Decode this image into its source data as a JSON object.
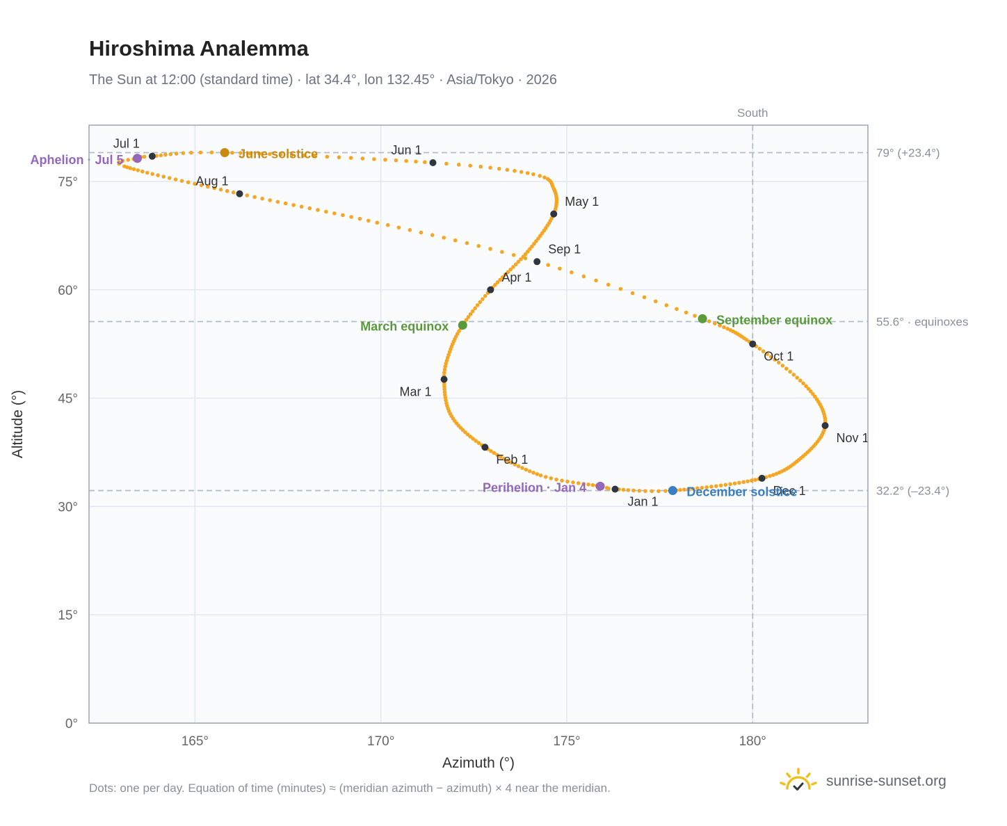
{
  "title": "Hiroshima Analemma",
  "subtitle": "The Sun at 12:00 (standard time) · lat 34.4°, lon 132.45° · Asia/Tokyo · 2026",
  "footnote": "Dots: one per day. Equation of time (minutes) ≈ (meridian azimuth − azimuth) × 4 near the meridian.",
  "brand": {
    "name": "sunrise-sunset.org",
    "icon": "sun-logo-icon",
    "color": "#f0c020"
  },
  "colors": {
    "curve": "#f5a623",
    "month_marker": "#2f3640",
    "solstice_june": "#c98a0d",
    "solstice_december": "#3a7fc1",
    "equinox": "#5a9a3a",
    "apsis": "#9467bd",
    "reference_line": "#b3bdc8",
    "grid": "#e3e8ee",
    "plot_background": "#f9fbfd",
    "plot_border": "#9aa5b4"
  },
  "chart_data": {
    "type": "scatter",
    "xlabel": "Azimuth (°)",
    "ylabel": "Altitude (°)",
    "xlim": [
      162.15,
      183.1
    ],
    "ylim": [
      0,
      82.8
    ],
    "xticks": [
      "165°",
      "170°",
      "175°",
      "180°"
    ],
    "xtick_values": [
      165,
      170,
      175,
      180
    ],
    "yticks": [
      "0°",
      "15°",
      "30°",
      "45°",
      "60°",
      "75°"
    ],
    "ytick_values": [
      0,
      15,
      30,
      45,
      60,
      75
    ],
    "grid": true,
    "meridian": {
      "label": "South",
      "azimuth": 180
    },
    "reference_lines": [
      {
        "altitude": 79.0,
        "label": "79° (+23.4°)"
      },
      {
        "altitude": 55.6,
        "label": "55.6° · equinoxes"
      },
      {
        "altitude": 32.2,
        "label": "32.2° (–23.4°)"
      }
    ],
    "curve_anchors": [
      {
        "day": 0,
        "az": 176.3,
        "alt": 32.4
      },
      {
        "day": 3,
        "az": 175.9,
        "alt": 32.8
      },
      {
        "day": 15,
        "az": 174.3,
        "alt": 34.3
      },
      {
        "day": 31,
        "az": 172.8,
        "alt": 38.2
      },
      {
        "day": 45,
        "az": 171.9,
        "alt": 42.5
      },
      {
        "day": 59,
        "az": 171.7,
        "alt": 47.6
      },
      {
        "day": 68,
        "az": 171.85,
        "alt": 51.4
      },
      {
        "day": 78,
        "az": 172.2,
        "alt": 55.1
      },
      {
        "day": 90,
        "az": 172.95,
        "alt": 60.0
      },
      {
        "day": 105,
        "az": 173.95,
        "alt": 65.3
      },
      {
        "day": 120,
        "az": 174.65,
        "alt": 70.5
      },
      {
        "day": 132,
        "az": 174.65,
        "alt": 74.0
      },
      {
        "day": 140,
        "az": 174.1,
        "alt": 76.0
      },
      {
        "day": 151,
        "az": 171.4,
        "alt": 77.6
      },
      {
        "day": 171,
        "az": 165.8,
        "alt": 79.0
      },
      {
        "day": 181,
        "az": 163.85,
        "alt": 78.5
      },
      {
        "day": 185,
        "az": 163.45,
        "alt": 78.2
      },
      {
        "day": 191,
        "az": 163.1,
        "alt": 77.1
      },
      {
        "day": 212,
        "az": 166.2,
        "alt": 73.3
      },
      {
        "day": 229,
        "az": 169.9,
        "alt": 69.3
      },
      {
        "day": 243,
        "az": 174.2,
        "alt": 63.9
      },
      {
        "day": 258,
        "az": 178.65,
        "alt": 56.0
      },
      {
        "day": 273,
        "az": 180.0,
        "alt": 52.5
      },
      {
        "day": 289,
        "az": 181.5,
        "alt": 46.3
      },
      {
        "day": 304,
        "az": 181.95,
        "alt": 41.2
      },
      {
        "day": 319,
        "az": 181.3,
        "alt": 36.7
      },
      {
        "day": 334,
        "az": 180.25,
        "alt": 33.9
      },
      {
        "day": 355,
        "az": 177.85,
        "alt": 32.2
      },
      {
        "day": 365,
        "az": 176.3,
        "alt": 32.4
      }
    ],
    "month_markers": [
      {
        "label": "Jan 1",
        "az": 176.3,
        "alt": 32.4,
        "anchor": "start",
        "dx": 18,
        "dy": 24
      },
      {
        "label": "Feb 1",
        "az": 172.8,
        "alt": 38.2,
        "anchor": "start",
        "dx": 16,
        "dy": 24
      },
      {
        "label": "Mar 1",
        "az": 171.7,
        "alt": 47.6,
        "anchor": "end",
        "dx": -18,
        "dy": 24
      },
      {
        "label": "Apr 1",
        "az": 172.95,
        "alt": 60.0,
        "anchor": "start",
        "dx": 16,
        "dy": -12
      },
      {
        "label": "May 1",
        "az": 174.65,
        "alt": 70.5,
        "anchor": "start",
        "dx": 16,
        "dy": -12
      },
      {
        "label": "Jun 1",
        "az": 171.4,
        "alt": 77.6,
        "anchor": "end",
        "dx": -16,
        "dy": -12
      },
      {
        "label": "Jul 1",
        "az": 163.85,
        "alt": 78.5,
        "anchor": "end",
        "dx": -18,
        "dy": -12
      },
      {
        "label": "Aug 1",
        "az": 166.2,
        "alt": 73.3,
        "anchor": "end",
        "dx": -16,
        "dy": -12
      },
      {
        "label": "Sep 1",
        "az": 174.2,
        "alt": 63.9,
        "anchor": "start",
        "dx": 16,
        "dy": -12
      },
      {
        "label": "Oct 1",
        "az": 180.0,
        "alt": 52.5,
        "anchor": "start",
        "dx": 16,
        "dy": 24
      },
      {
        "label": "Nov 1",
        "az": 181.95,
        "alt": 41.2,
        "anchor": "start",
        "dx": 16,
        "dy": 24
      },
      {
        "label": "Dec 1",
        "az": 180.25,
        "alt": 33.9,
        "anchor": "start",
        "dx": 16,
        "dy": 24
      }
    ],
    "events": [
      {
        "label": "June solstice",
        "az": 165.8,
        "alt": 79.0,
        "color": "#c98a0d",
        "anchor": "start",
        "dx": 20,
        "dy": 8
      },
      {
        "label": "December solstice",
        "az": 177.85,
        "alt": 32.2,
        "color": "#3a7fc1",
        "anchor": "start",
        "dx": 20,
        "dy": 8
      },
      {
        "label": "March equinox",
        "az": 172.2,
        "alt": 55.1,
        "color": "#5a9a3a",
        "anchor": "end",
        "dx": -20,
        "dy": 8
      },
      {
        "label": "September equinox",
        "az": 178.65,
        "alt": 56.0,
        "color": "#5a9a3a",
        "anchor": "start",
        "dx": 20,
        "dy": 8
      },
      {
        "label": "Aphelion · Jul 5",
        "az": 163.45,
        "alt": 78.2,
        "color": "#9467bd",
        "anchor": "end",
        "dx": -20,
        "dy": 8
      },
      {
        "label": "Perihelion · Jan 4",
        "az": 175.9,
        "alt": 32.8,
        "color": "#9467bd",
        "anchor": "end",
        "dx": -20,
        "dy": 8
      }
    ]
  }
}
